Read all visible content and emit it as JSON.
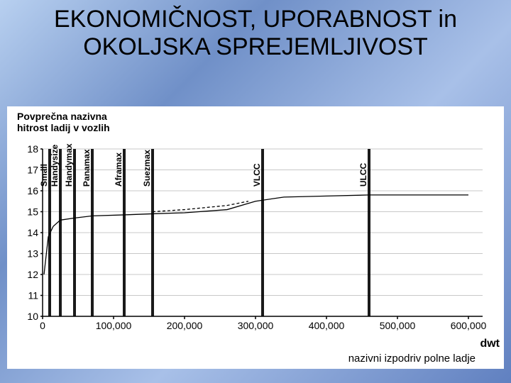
{
  "title": "EKONOMIČNOST, UPORABNOST in OKOLJSKA SPREJEMLJIVOST",
  "chart": {
    "type": "line",
    "ylabel_line1": "Povprečna nazivna",
    "ylabel_line2": "hitrost ladij v vozlih",
    "xlabel": "nazivni izpodriv polne ladje",
    "x_unit": "dwt",
    "background_color": "#ffffff",
    "axis_color": "#000000",
    "grid_color": "#c8c8c8",
    "ylim": [
      10,
      18
    ],
    "yticks": [
      10,
      11,
      12,
      13,
      14,
      15,
      16,
      17,
      18
    ],
    "xlim": [
      0,
      620000
    ],
    "xticks": [
      0,
      100000,
      200000,
      300000,
      400000,
      500000,
      600000
    ],
    "xtick_labels": [
      "0",
      "100,000",
      "200,000",
      "300,000",
      "400,000",
      "500,000",
      "600,000"
    ],
    "categories": [
      {
        "label": "Small",
        "x": 10000
      },
      {
        "label": "Handysize",
        "x": 25000
      },
      {
        "label": "Handymax",
        "x": 45000
      },
      {
        "label": "Panamax",
        "x": 70000
      },
      {
        "label": "Aframax",
        "x": 115000
      },
      {
        "label": "Suezmax",
        "x": 155000
      },
      {
        "label": "VLCC",
        "x": 310000
      },
      {
        "label": "ULCC",
        "x": 460000
      }
    ],
    "series_solid": [
      {
        "x": 2000,
        "y": 12.0
      },
      {
        "x": 8000,
        "y": 13.8
      },
      {
        "x": 15000,
        "y": 14.3
      },
      {
        "x": 25000,
        "y": 14.6
      },
      {
        "x": 45000,
        "y": 14.7
      },
      {
        "x": 70000,
        "y": 14.8
      },
      {
        "x": 115000,
        "y": 14.85
      },
      {
        "x": 155000,
        "y": 14.9
      },
      {
        "x": 200000,
        "y": 14.95
      },
      {
        "x": 260000,
        "y": 15.1
      },
      {
        "x": 300000,
        "y": 15.5
      },
      {
        "x": 340000,
        "y": 15.7
      },
      {
        "x": 400000,
        "y": 15.75
      },
      {
        "x": 460000,
        "y": 15.8
      },
      {
        "x": 600000,
        "y": 15.8
      }
    ],
    "series_dash": [
      {
        "x": 155000,
        "y": 15.0
      },
      {
        "x": 200000,
        "y": 15.1
      },
      {
        "x": 260000,
        "y": 15.3
      },
      {
        "x": 290000,
        "y": 15.5
      }
    ],
    "line_width": 1.3,
    "vert_line_width": 1.8,
    "label_fontsize": 12,
    "tick_fontsize": 14
  }
}
